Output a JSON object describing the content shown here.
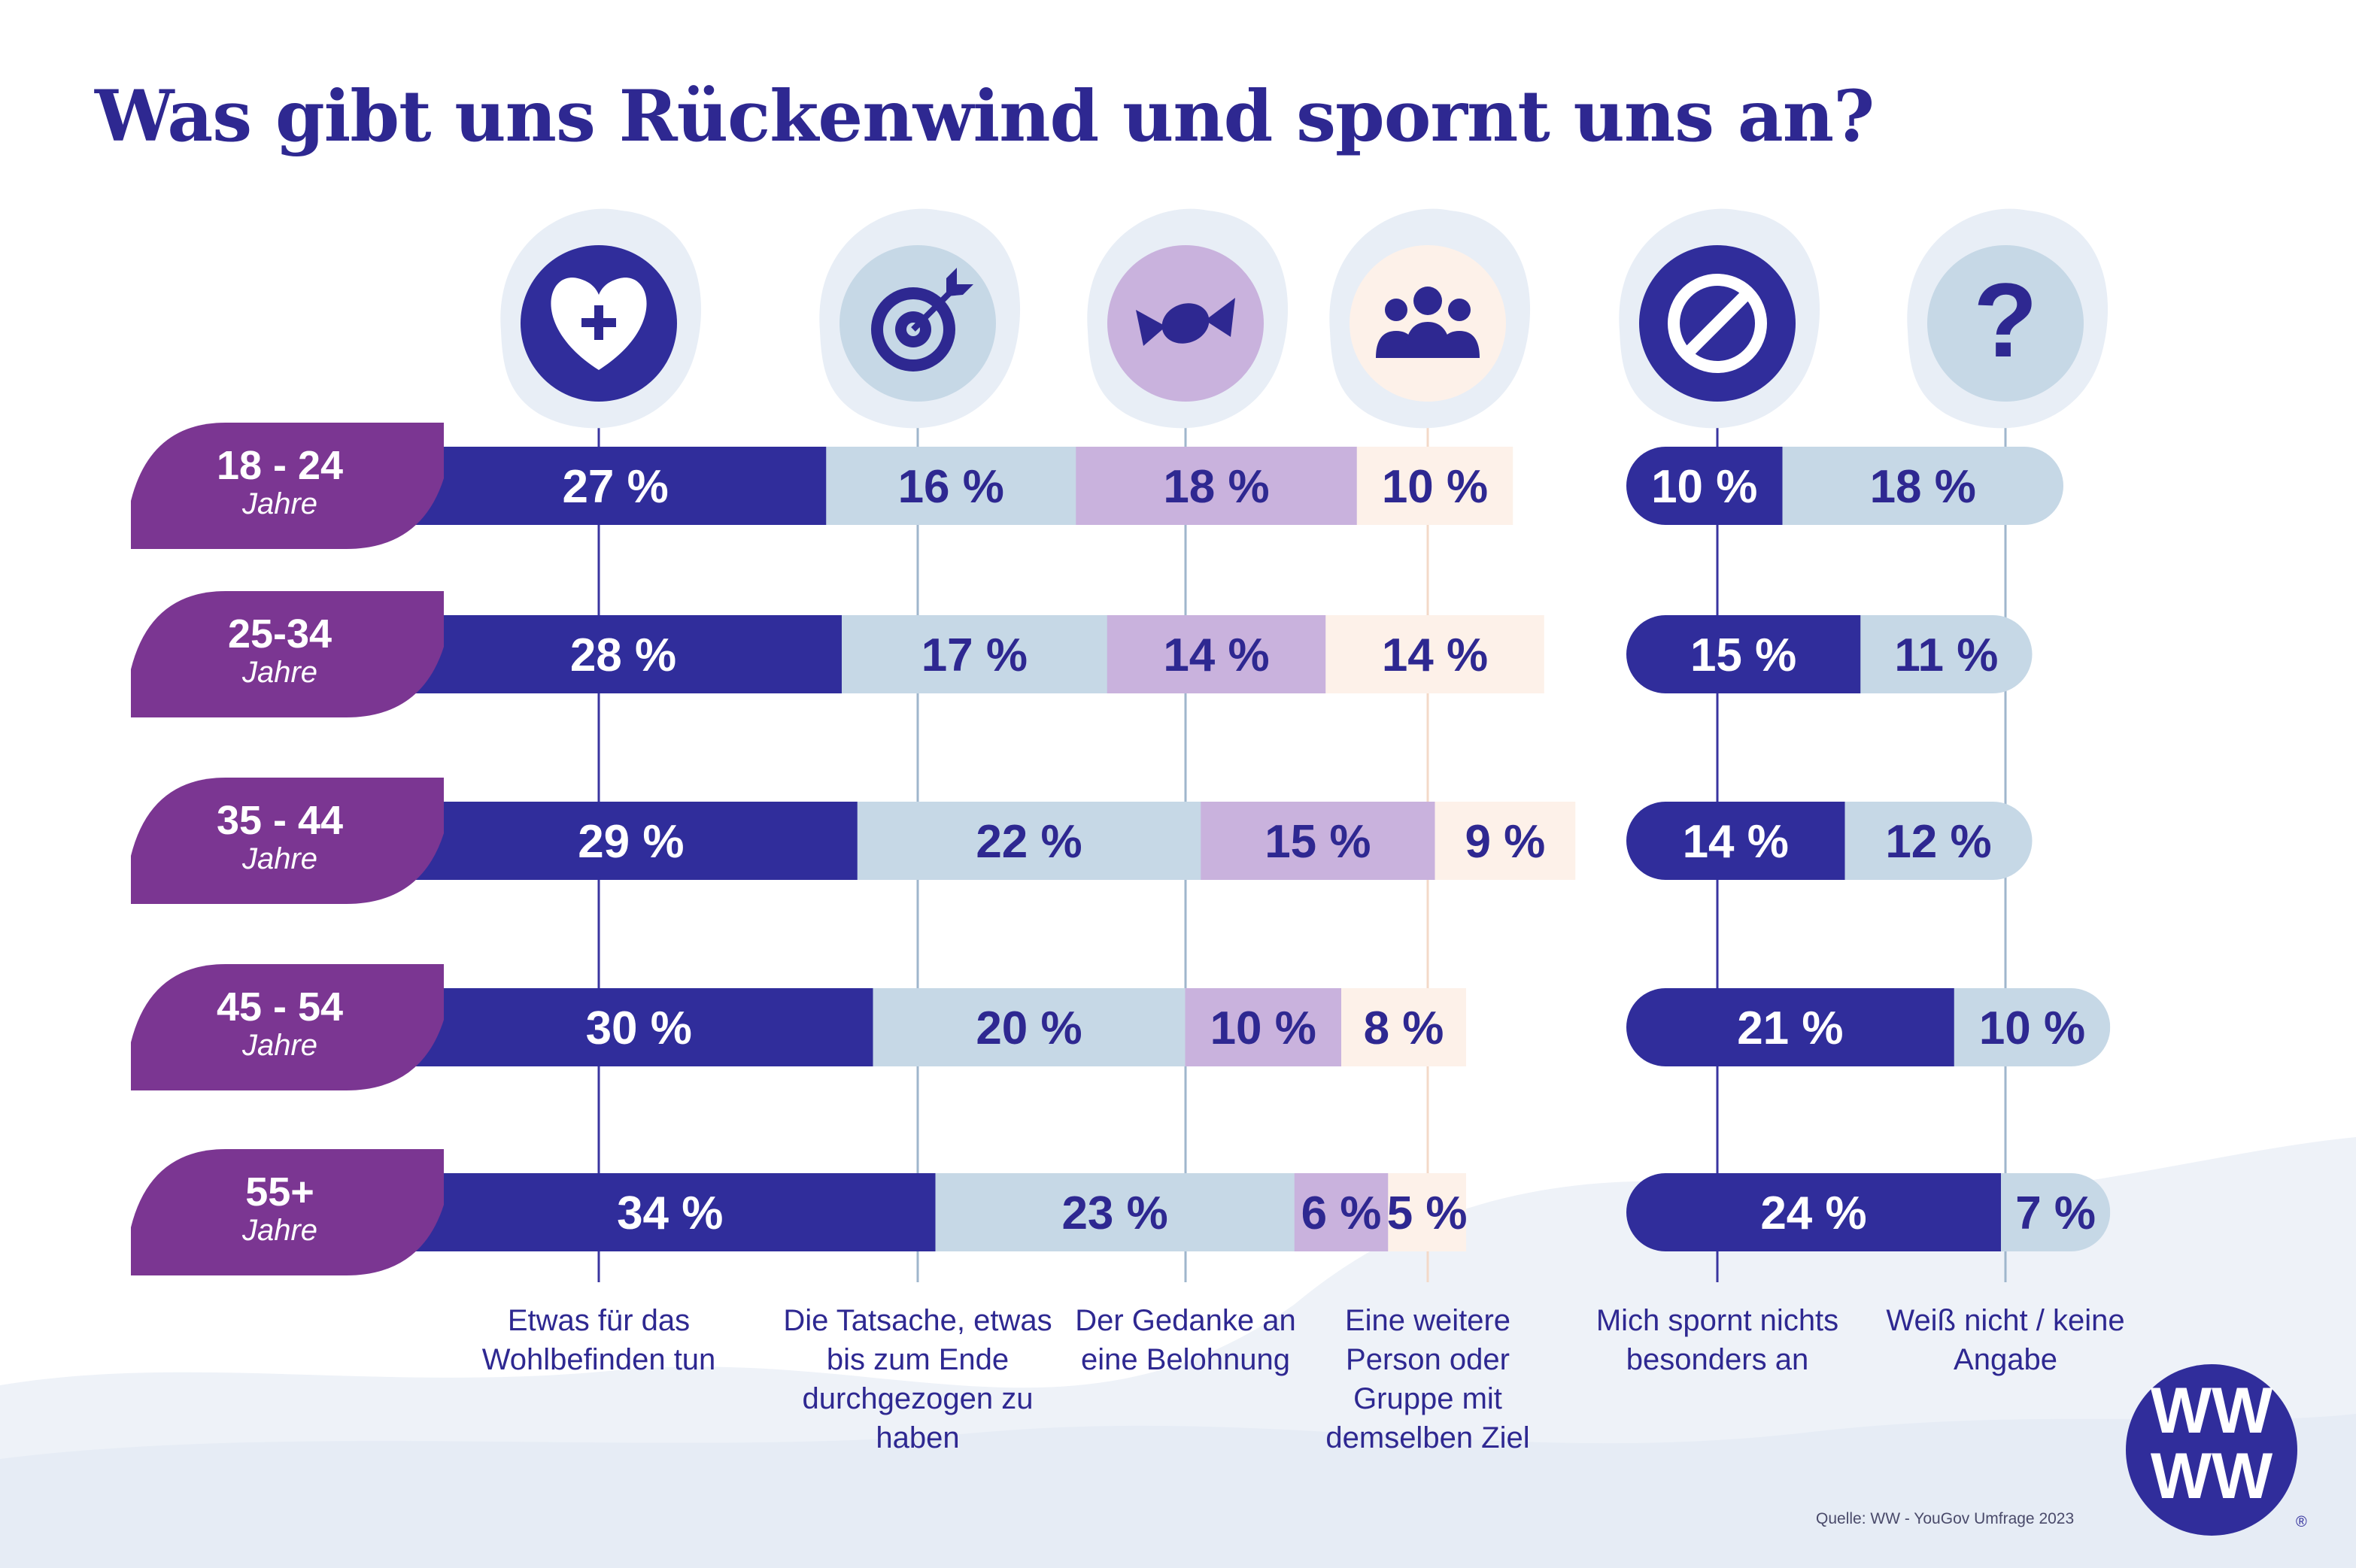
{
  "title": "Was gibt uns Rückenwind und spornt uns an?",
  "source": "Quelle: WW - YouGov Umfrage 2023",
  "logo_text": "WW",
  "colors": {
    "wellbeing": "#302d9b",
    "finish": "#c6d8e6",
    "reward": "#c9b2dd",
    "group": "#fdf1e9",
    "nothing": "#302d9b",
    "unknown": "#c6d8e6",
    "age_tag": "#7b3692",
    "text_dark": "#2e2891"
  },
  "chart_data": {
    "type": "bar",
    "orientation": "horizontal",
    "stacked": true,
    "title": "Was gibt uns Rückenwind und spornt uns an?",
    "unit": "%",
    "categories": [
      "18 - 24",
      "25-34",
      "35 - 44",
      "45 - 54",
      "55+"
    ],
    "category_sub": "Jahre",
    "groups": [
      {
        "name": "motivation",
        "series": [
          {
            "key": "wellbeing",
            "icon": "heart-plus-icon",
            "name": "Etwas für das Wohlbefinden tun",
            "values": [
              27,
              28,
              29,
              30,
              34
            ]
          },
          {
            "key": "finish",
            "icon": "target-icon",
            "name": "Die Tatsache, etwas bis zum Ende durchgezogen zu haben",
            "values": [
              16,
              17,
              22,
              20,
              23
            ]
          },
          {
            "key": "reward",
            "icon": "candy-icon",
            "name": "Der Gedanke an eine Belohnung",
            "values": [
              18,
              14,
              15,
              10,
              6
            ]
          },
          {
            "key": "group",
            "icon": "group-icon",
            "name": "Eine weitere Person oder Gruppe mit demselben Ziel",
            "values": [
              10,
              14,
              9,
              8,
              5
            ]
          }
        ]
      },
      {
        "name": "none",
        "series": [
          {
            "key": "nothing",
            "icon": "prohibited-icon",
            "name": "Mich spornt nichts besonders an",
            "values": [
              10,
              15,
              14,
              21,
              24
            ]
          },
          {
            "key": "unknown",
            "icon": "question-icon",
            "name": "Weiß nicht / keine Angabe",
            "values": [
              18,
              11,
              12,
              10,
              7
            ]
          }
        ]
      }
    ]
  }
}
